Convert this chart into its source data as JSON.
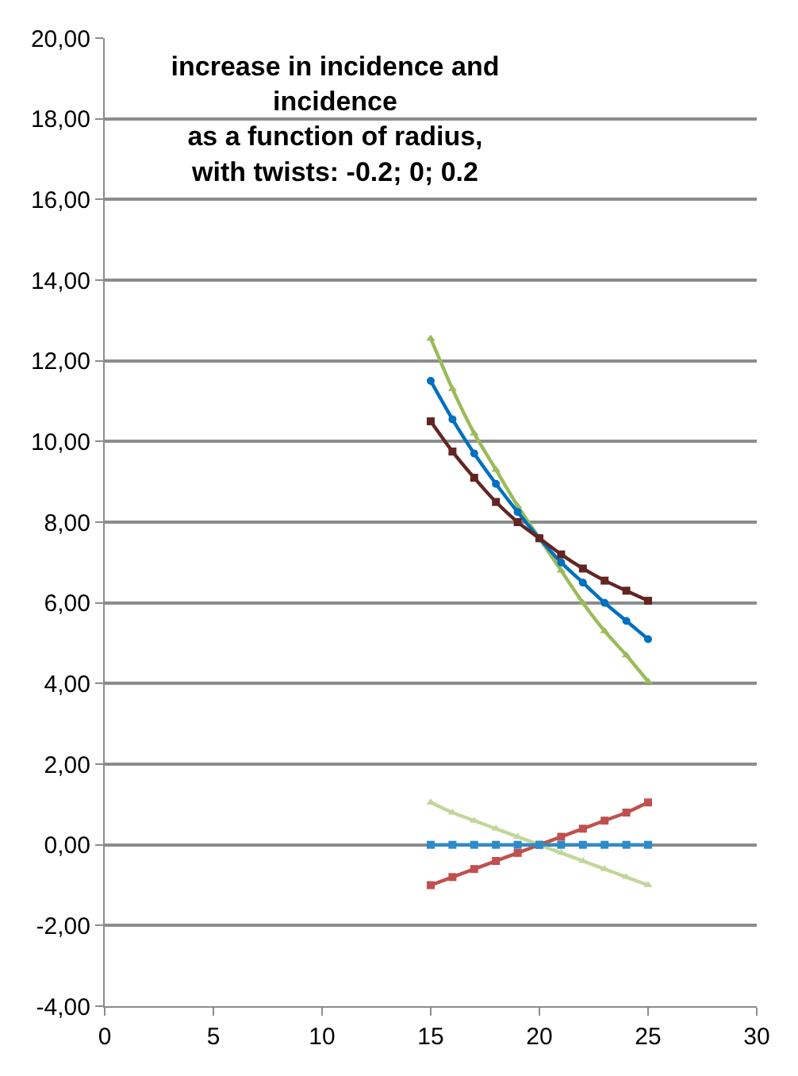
{
  "chart_data": {
    "type": "line",
    "title": "increase in incidence and\nincidence\nas a function of radius,\nwith twists: -0.2; 0; 0.2",
    "x": [
      15,
      16,
      17,
      18,
      19,
      20,
      21,
      22,
      23,
      24,
      25
    ],
    "series": [
      {
        "color": "#9bbb59",
        "marker": "triangle",
        "values": [
          12.55,
          11.3,
          10.2,
          9.3,
          8.4,
          7.6,
          6.8,
          6.0,
          5.3,
          4.7,
          4.05
        ]
      },
      {
        "color": "#0070c0",
        "marker": "circle",
        "values": [
          11.5,
          10.55,
          9.7,
          8.95,
          8.25,
          7.6,
          7.0,
          6.5,
          6.0,
          5.55,
          5.1
        ]
      },
      {
        "color": "#632523",
        "marker": "square",
        "values": [
          10.5,
          9.75,
          9.1,
          8.5,
          8.0,
          7.6,
          7.2,
          6.85,
          6.55,
          6.3,
          6.05
        ]
      },
      {
        "color": "#c0504d",
        "marker": "square",
        "values": [
          -1.0,
          -0.8,
          -0.6,
          -0.4,
          -0.2,
          0.0,
          0.2,
          0.4,
          0.6,
          0.8,
          1.05
        ]
      },
      {
        "color": "#c3d69b",
        "marker": "triangle",
        "values": [
          1.05,
          0.8,
          0.6,
          0.4,
          0.2,
          0.0,
          -0.2,
          -0.4,
          -0.6,
          -0.8,
          -1.0
        ]
      },
      {
        "color": "#2e8bc9",
        "marker": "square",
        "values": [
          0,
          0,
          0,
          0,
          0,
          0,
          0,
          0,
          0,
          0,
          0
        ]
      }
    ],
    "xlim": [
      0,
      30
    ],
    "xticks": [
      0,
      5,
      10,
      15,
      20,
      25,
      30
    ],
    "ylim": [
      -4,
      20
    ],
    "yticks": [
      {
        "value": -4,
        "label": "-4,00"
      },
      {
        "value": -2,
        "label": "-2,00"
      },
      {
        "value": 0,
        "label": "0,00"
      },
      {
        "value": 2,
        "label": "2,00"
      },
      {
        "value": 4,
        "label": "4,00"
      },
      {
        "value": 6,
        "label": "6,00"
      },
      {
        "value": 8,
        "label": "8,00"
      },
      {
        "value": 10,
        "label": "10,00"
      },
      {
        "value": 12,
        "label": "12,00"
      },
      {
        "value": 14,
        "label": "14,00"
      },
      {
        "value": 16,
        "label": "16,00"
      },
      {
        "value": 18,
        "label": "18,00"
      },
      {
        "value": 20,
        "label": "20,00"
      }
    ],
    "grid": "y"
  }
}
